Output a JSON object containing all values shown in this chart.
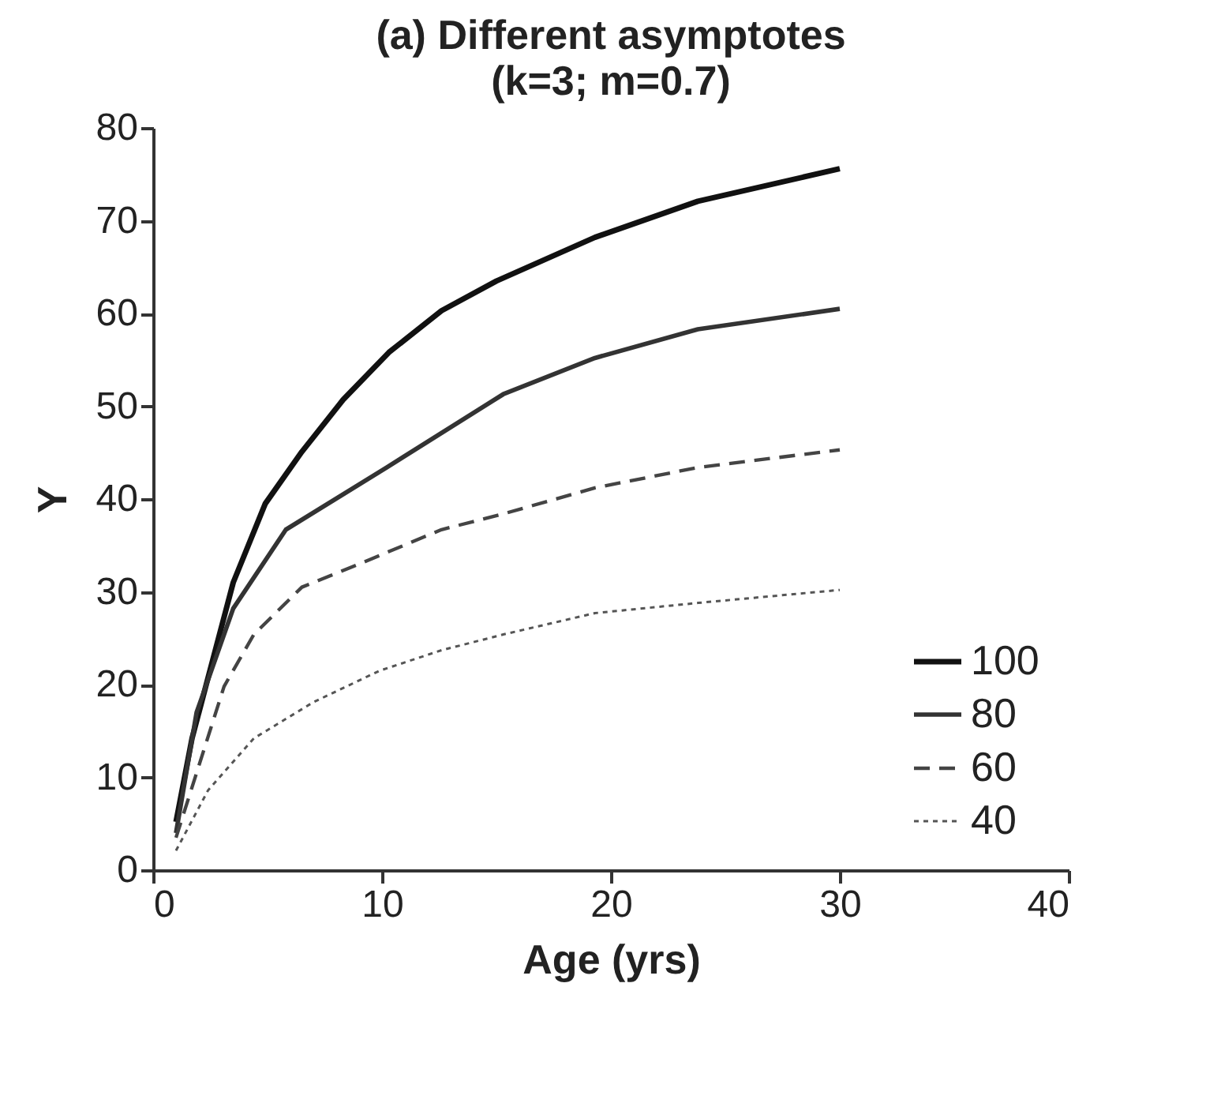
{
  "chart_data": {
    "type": "line",
    "title": "(a) Different asymptotes",
    "subtitle": "(k=3; m=0.7)",
    "xlabel": "Age (yrs)",
    "ylabel": "Y",
    "xlim": [
      0,
      40
    ],
    "xticks": [
      0,
      10,
      20,
      30,
      40
    ],
    "ylim": [
      0,
      80
    ],
    "yticks": [
      0,
      10,
      20,
      30,
      40,
      50,
      60,
      70,
      80
    ],
    "grid": false,
    "legend": "bottom right",
    "marker": "none",
    "series": [
      {
        "name": "100",
        "color": "#111111",
        "line_style": "solid",
        "x": [
          1,
          1.7,
          2.6,
          3.5,
          4.9,
          6.5,
          8.3,
          10.3,
          12.6,
          15,
          19.3,
          23.8,
          30
        ],
        "values": [
          5.2,
          14.2,
          22.6,
          31,
          39.5,
          45.1,
          50.7,
          55.8,
          60.3,
          63.5,
          68.2,
          72.1,
          75.6
        ]
      },
      {
        "name": "80",
        "color": "#333333",
        "line_style": "solid",
        "x": [
          1,
          1.9,
          3.5,
          5.8,
          10.2,
          15.3,
          19.3,
          23.8,
          30
        ],
        "values": [
          4,
          17,
          28.2,
          36.7,
          43.4,
          51.3,
          55.2,
          58.3,
          60.5
        ]
      },
      {
        "name": "60",
        "color": "#444444",
        "line_style": "dashed",
        "x": [
          1,
          3.1,
          4.4,
          6.5,
          9.3,
          12.6,
          15.3,
          19.3,
          23.8,
          30
        ],
        "values": [
          3.5,
          19.8,
          25.4,
          30.5,
          33.3,
          36.7,
          38.4,
          41.2,
          43.4,
          45.3
        ]
      },
      {
        "name": "40",
        "color": "#555555",
        "line_style": "dotted",
        "x": [
          1,
          2.4,
          4.4,
          7,
          9.9,
          12.6,
          15.3,
          19.3,
          23.8,
          30
        ],
        "values": [
          2.1,
          8.6,
          14.2,
          18.1,
          21.5,
          23.7,
          25.4,
          27.7,
          28.8,
          30.2
        ]
      }
    ]
  }
}
